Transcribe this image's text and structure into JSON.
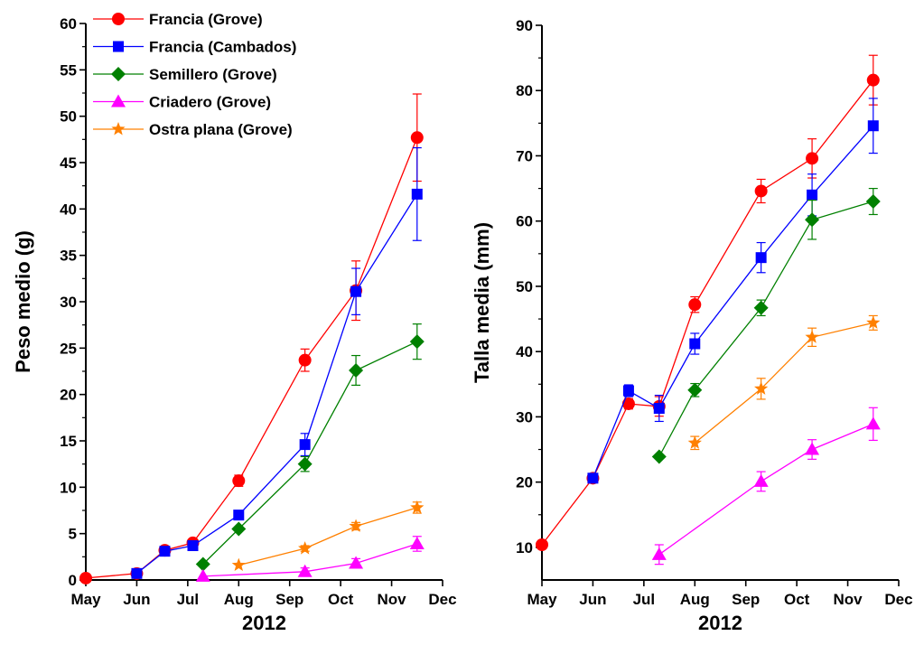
{
  "colors": {
    "francia_grove": "#ff0000",
    "francia_cambados": "#0000ff",
    "semillero": "#008000",
    "criadero": "#ff00ff",
    "ostra_plana": "#ff8000"
  },
  "legend": [
    "Francia (Grove)",
    "Francia (Cambados)",
    "Semillero (Grove)",
    "Criadero (Grove)",
    "Ostra plana (Grove)"
  ],
  "chart_data": [
    {
      "type": "line",
      "xlabel": "2012",
      "ylabel": "Peso medio (g)",
      "xlim": [
        0,
        7
      ],
      "ylim": [
        0,
        60
      ],
      "xticks": [
        0,
        1,
        2,
        3,
        4,
        5,
        6,
        7
      ],
      "xtick_labels": [
        "May",
        "Jun",
        "Jul",
        "Aug",
        "Sep",
        "Oct",
        "Nov",
        "Dec"
      ],
      "yticks": [
        0,
        5,
        10,
        15,
        20,
        25,
        30,
        35,
        40,
        45,
        50,
        55,
        60
      ],
      "legend_position": "top-left",
      "series": [
        {
          "name": "Francia (Grove)",
          "color_key": "francia_grove",
          "marker": "circle",
          "x": [
            0,
            1,
            1.55,
            2.1,
            3,
            4.3,
            5.3,
            6.5
          ],
          "y": [
            0.2,
            0.7,
            3.2,
            4.0,
            10.7,
            23.7,
            31.2,
            47.7
          ],
          "err": [
            0,
            0,
            0,
            0,
            0.6,
            1.2,
            3.2,
            4.7
          ]
        },
        {
          "name": "Francia (Cambados)",
          "color_key": "francia_cambados",
          "marker": "square",
          "x": [
            1,
            1.55,
            2.1,
            3,
            4.3,
            5.3,
            6.5
          ],
          "y": [
            0.7,
            3.1,
            3.7,
            7.0,
            14.6,
            31.1,
            41.6
          ],
          "err": [
            0,
            0,
            0,
            0,
            1.2,
            2.5,
            5.0
          ]
        },
        {
          "name": "Semillero (Grove)",
          "color_key": "semillero",
          "marker": "diamond",
          "x": [
            2.3,
            3,
            4.3,
            5.3,
            6.5
          ],
          "y": [
            1.7,
            5.5,
            12.5,
            22.6,
            25.7
          ],
          "err": [
            0,
            0,
            0.8,
            1.6,
            1.9
          ]
        },
        {
          "name": "Criadero (Grove)",
          "color_key": "criadero",
          "marker": "triangle",
          "x": [
            2.3,
            4.3,
            5.3,
            6.5
          ],
          "y": [
            0.4,
            0.9,
            1.8,
            3.9
          ],
          "err": [
            0,
            0.4,
            0.5,
            0.8
          ]
        },
        {
          "name": "Ostra plana (Grove)",
          "color_key": "ostra_plana",
          "marker": "star",
          "x": [
            3,
            4.3,
            5.3,
            6.5
          ],
          "y": [
            1.6,
            3.4,
            5.8,
            7.8
          ],
          "err": [
            0,
            0.3,
            0.4,
            0.6
          ]
        }
      ]
    },
    {
      "type": "line",
      "xlabel": "2012",
      "ylabel": "Talla media (mm)",
      "xlim": [
        0,
        7
      ],
      "ylim": [
        5,
        90
      ],
      "xticks": [
        0,
        1,
        2,
        3,
        4,
        5,
        6,
        7
      ],
      "xtick_labels": [
        "May",
        "Jun",
        "Jul",
        "Aug",
        "Sep",
        "Oct",
        "Nov",
        "Dec"
      ],
      "yticks": [
        10,
        20,
        30,
        40,
        50,
        60,
        70,
        80,
        90
      ],
      "series": [
        {
          "name": "Francia (Grove)",
          "color_key": "francia_grove",
          "marker": "circle",
          "x": [
            0,
            1,
            1.7,
            2.3,
            3,
            4.3,
            5.3,
            6.5
          ],
          "y": [
            10.4,
            20.6,
            32.0,
            31.6,
            47.2,
            64.6,
            69.6,
            81.6
          ],
          "err": [
            0,
            0,
            0.8,
            1.5,
            1.2,
            1.8,
            3.0,
            3.8
          ]
        },
        {
          "name": "Francia (Cambados)",
          "color_key": "francia_cambados",
          "marker": "square",
          "x": [
            1,
            1.7,
            2.3,
            3,
            4.3,
            5.3,
            6.5
          ],
          "y": [
            20.6,
            34.0,
            31.3,
            41.2,
            54.4,
            64.0,
            74.6
          ],
          "err": [
            0,
            0.9,
            2.0,
            1.6,
            2.3,
            3.2,
            4.2
          ]
        },
        {
          "name": "Semillero (Grove)",
          "color_key": "semillero",
          "marker": "diamond",
          "x": [
            2.3,
            3,
            4.3,
            5.3,
            6.5
          ],
          "y": [
            23.9,
            34.1,
            46.7,
            60.2,
            63.0
          ],
          "err": [
            0,
            1.0,
            1.2,
            3.0,
            2.0
          ]
        },
        {
          "name": "Criadero (Grove)",
          "color_key": "criadero",
          "marker": "triangle",
          "x": [
            2.3,
            4.3,
            5.3,
            6.5
          ],
          "y": [
            8.9,
            20.1,
            25.0,
            28.9
          ],
          "err": [
            1.5,
            1.5,
            1.5,
            2.5
          ]
        },
        {
          "name": "Ostra plana (Grove)",
          "color_key": "ostra_plana",
          "marker": "star",
          "x": [
            3,
            4.3,
            5.3,
            6.5
          ],
          "y": [
            26.0,
            34.3,
            42.2,
            44.4
          ],
          "err": [
            1.0,
            1.6,
            1.4,
            1.1
          ]
        }
      ]
    }
  ]
}
